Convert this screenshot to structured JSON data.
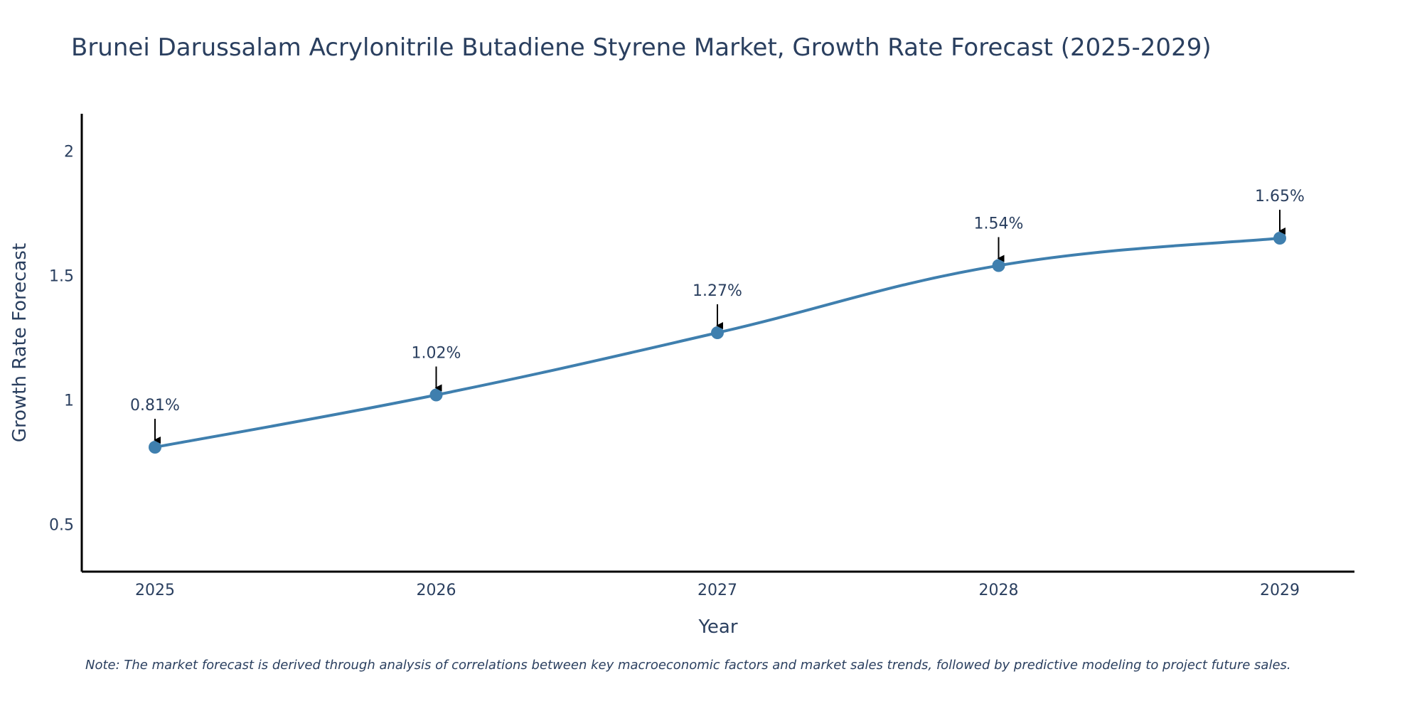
{
  "chart_data": {
    "type": "line",
    "title": "Brunei Darussalam Acrylonitrile Butadiene Styrene Market, Growth Rate Forecast (2025-2029)",
    "xlabel": "Year",
    "ylabel": "Growth Rate Forecast",
    "categories": [
      "2025",
      "2026",
      "2027",
      "2028",
      "2029"
    ],
    "series": [
      {
        "name": "Growth Rate Forecast",
        "values": [
          0.81,
          1.02,
          1.27,
          1.54,
          1.65
        ],
        "color": "#3f7fae"
      }
    ],
    "data_labels": [
      "0.81%",
      "1.02%",
      "1.27%",
      "1.54%",
      "1.65%"
    ],
    "yticks": [
      0.5,
      1,
      1.5,
      2
    ],
    "ytick_labels": [
      "0.5",
      "1",
      "1.5",
      "2"
    ],
    "ylim": [
      0.31,
      2.15
    ],
    "grid": false,
    "line_shape": "spline",
    "note": "Note: The market forecast is derived through analysis of correlations between key macroeconomic factors and market sales trends, followed by predictive modeling to project future sales."
  }
}
